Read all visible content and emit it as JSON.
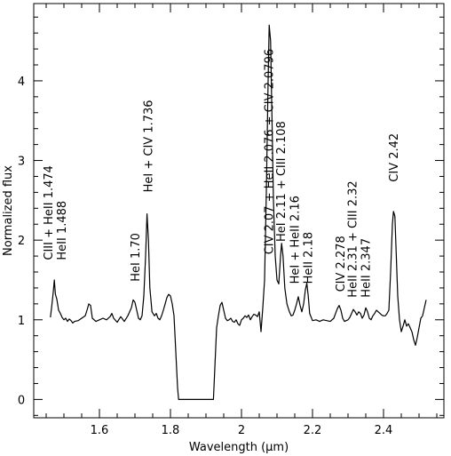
{
  "chart_data": {
    "type": "line",
    "xlabel": "Wavelength (μm)",
    "ylabel": "Normalized flux",
    "xlim": [
      1.415,
      2.57
    ],
    "ylim": [
      -0.23,
      4.97
    ],
    "x_ticks": [
      1.6,
      1.8,
      2.0,
      2.2,
      2.4
    ],
    "x_tick_labels": [
      "1.6",
      "1.8",
      "2",
      "2.2",
      "2.4"
    ],
    "y_ticks": [
      0,
      1,
      2,
      3,
      4
    ],
    "y_tick_labels": [
      "0",
      "1",
      "2",
      "3",
      "4"
    ],
    "grid": false,
    "line_color": "#000000",
    "series": [
      {
        "points": [
          [
            1.462,
            1.03
          ],
          [
            1.466,
            1.18
          ],
          [
            1.47,
            1.35
          ],
          [
            1.473,
            1.5
          ],
          [
            1.476,
            1.32
          ],
          [
            1.48,
            1.26
          ],
          [
            1.485,
            1.12
          ],
          [
            1.49,
            1.08
          ],
          [
            1.495,
            1.03
          ],
          [
            1.5,
            1.0
          ],
          [
            1.505,
            1.02
          ],
          [
            1.51,
            0.98
          ],
          [
            1.515,
            1.01
          ],
          [
            1.52,
            0.99
          ],
          [
            1.525,
            0.96
          ],
          [
            1.53,
            0.98
          ],
          [
            1.54,
            0.99
          ],
          [
            1.55,
            1.02
          ],
          [
            1.56,
            1.05
          ],
          [
            1.565,
            1.12
          ],
          [
            1.57,
            1.2
          ],
          [
            1.575,
            1.18
          ],
          [
            1.58,
            1.02
          ],
          [
            1.59,
            0.98
          ],
          [
            1.6,
            1.0
          ],
          [
            1.61,
            1.02
          ],
          [
            1.62,
            1.0
          ],
          [
            1.63,
            1.04
          ],
          [
            1.635,
            1.08
          ],
          [
            1.64,
            1.02
          ],
          [
            1.65,
            0.97
          ],
          [
            1.66,
            1.04
          ],
          [
            1.67,
            0.98
          ],
          [
            1.68,
            1.05
          ],
          [
            1.69,
            1.15
          ],
          [
            1.695,
            1.25
          ],
          [
            1.7,
            1.22
          ],
          [
            1.705,
            1.12
          ],
          [
            1.71,
            1.02
          ],
          [
            1.715,
            1.0
          ],
          [
            1.72,
            1.05
          ],
          [
            1.725,
            1.3
          ],
          [
            1.73,
            1.8
          ],
          [
            1.734,
            2.33
          ],
          [
            1.738,
            2.0
          ],
          [
            1.742,
            1.4
          ],
          [
            1.748,
            1.1
          ],
          [
            1.755,
            1.05
          ],
          [
            1.76,
            1.08
          ],
          [
            1.765,
            1.02
          ],
          [
            1.77,
            1.0
          ],
          [
            1.775,
            1.05
          ],
          [
            1.78,
            1.12
          ],
          [
            1.785,
            1.2
          ],
          [
            1.79,
            1.28
          ],
          [
            1.795,
            1.32
          ],
          [
            1.8,
            1.3
          ],
          [
            1.805,
            1.2
          ],
          [
            1.81,
            1.05
          ],
          [
            1.815,
            0.6
          ],
          [
            1.82,
            0.15
          ],
          [
            1.823,
            0.0
          ],
          [
            1.83,
            0.0
          ],
          [
            1.9,
            0.0
          ],
          [
            1.921,
            0.0
          ],
          [
            1.925,
            0.4
          ],
          [
            1.93,
            0.9
          ],
          [
            1.935,
            1.05
          ],
          [
            1.94,
            1.18
          ],
          [
            1.945,
            1.22
          ],
          [
            1.95,
            1.12
          ],
          [
            1.955,
            1.02
          ],
          [
            1.96,
            0.99
          ],
          [
            1.965,
            1.0
          ],
          [
            1.97,
            1.02
          ],
          [
            1.975,
            0.98
          ],
          [
            1.98,
            0.97
          ],
          [
            1.985,
            1.0
          ],
          [
            1.99,
            0.95
          ],
          [
            1.995,
            0.93
          ],
          [
            2.0,
            1.0
          ],
          [
            2.005,
            1.02
          ],
          [
            2.01,
            1.05
          ],
          [
            2.015,
            1.03
          ],
          [
            2.02,
            1.06
          ],
          [
            2.025,
            1.0
          ],
          [
            2.03,
            1.04
          ],
          [
            2.035,
            1.07
          ],
          [
            2.04,
            1.06
          ],
          [
            2.045,
            1.04
          ],
          [
            2.05,
            1.1
          ],
          [
            2.055,
            0.85
          ],
          [
            2.06,
            1.15
          ],
          [
            2.065,
            1.5
          ],
          [
            2.07,
            2.6
          ],
          [
            2.075,
            4.0
          ],
          [
            2.078,
            4.7
          ],
          [
            2.082,
            4.5
          ],
          [
            2.086,
            3.5
          ],
          [
            2.09,
            2.5
          ],
          [
            2.095,
            1.8
          ],
          [
            2.1,
            1.5
          ],
          [
            2.105,
            1.45
          ],
          [
            2.11,
            1.8
          ],
          [
            2.113,
            1.96
          ],
          [
            2.117,
            1.8
          ],
          [
            2.122,
            1.4
          ],
          [
            2.128,
            1.2
          ],
          [
            2.135,
            1.1
          ],
          [
            2.14,
            1.05
          ],
          [
            2.145,
            1.06
          ],
          [
            2.15,
            1.12
          ],
          [
            2.155,
            1.2
          ],
          [
            2.16,
            1.29
          ],
          [
            2.165,
            1.18
          ],
          [
            2.17,
            1.1
          ],
          [
            2.175,
            1.2
          ],
          [
            2.18,
            1.38
          ],
          [
            2.184,
            1.46
          ],
          [
            2.188,
            1.3
          ],
          [
            2.192,
            1.08
          ],
          [
            2.2,
            0.99
          ],
          [
            2.21,
            1.0
          ],
          [
            2.22,
            0.98
          ],
          [
            2.23,
            1.0
          ],
          [
            2.24,
            0.99
          ],
          [
            2.25,
            0.98
          ],
          [
            2.26,
            1.02
          ],
          [
            2.265,
            1.08
          ],
          [
            2.27,
            1.14
          ],
          [
            2.275,
            1.18
          ],
          [
            2.28,
            1.12
          ],
          [
            2.285,
            1.02
          ],
          [
            2.29,
            0.98
          ],
          [
            2.3,
            1.0
          ],
          [
            2.305,
            1.03
          ],
          [
            2.31,
            1.08
          ],
          [
            2.315,
            1.13
          ],
          [
            2.32,
            1.1
          ],
          [
            2.325,
            1.06
          ],
          [
            2.33,
            1.1
          ],
          [
            2.335,
            1.08
          ],
          [
            2.34,
            1.02
          ],
          [
            2.345,
            1.06
          ],
          [
            2.35,
            1.15
          ],
          [
            2.355,
            1.1
          ],
          [
            2.36,
            1.02
          ],
          [
            2.365,
            1.0
          ],
          [
            2.37,
            1.05
          ],
          [
            2.375,
            1.08
          ],
          [
            2.38,
            1.12
          ],
          [
            2.385,
            1.1
          ],
          [
            2.39,
            1.08
          ],
          [
            2.395,
            1.06
          ],
          [
            2.4,
            1.05
          ],
          [
            2.405,
            1.05
          ],
          [
            2.41,
            1.08
          ],
          [
            2.415,
            1.12
          ],
          [
            2.42,
            1.6
          ],
          [
            2.425,
            2.2
          ],
          [
            2.428,
            2.36
          ],
          [
            2.432,
            2.3
          ],
          [
            2.436,
            1.8
          ],
          [
            2.44,
            1.3
          ],
          [
            2.445,
            1.0
          ],
          [
            2.45,
            0.85
          ],
          [
            2.455,
            0.92
          ],
          [
            2.46,
            1.0
          ],
          [
            2.465,
            0.92
          ],
          [
            2.47,
            0.95
          ],
          [
            2.475,
            0.9
          ],
          [
            2.48,
            0.85
          ],
          [
            2.485,
            0.75
          ],
          [
            2.49,
            0.68
          ],
          [
            2.495,
            0.78
          ],
          [
            2.5,
            0.9
          ],
          [
            2.505,
            1.02
          ],
          [
            2.51,
            1.05
          ],
          [
            2.515,
            1.15
          ],
          [
            2.52,
            1.25
          ]
        ]
      }
    ],
    "annotations": [
      {
        "lines": [
          "CIII + HeII 1.474",
          "HeII 1.488"
        ],
        "x": 1.474,
        "y": 1.75
      },
      {
        "lines": [
          "HeI 1.70"
        ],
        "x": 1.7,
        "y": 1.48
      },
      {
        "lines": [
          "HeI + CIV 1.736"
        ],
        "x": 1.736,
        "y": 2.6
      },
      {
        "lines": [
          "CIV 2.07 + HeII 2.076 + CIV 2.0796"
        ],
        "x": 2.076,
        "y": 1.82
      },
      {
        "lines": [
          "HeI 2.11 + CIII 2.108"
        ],
        "x": 2.11,
        "y": 1.98
      },
      {
        "lines": [
          "HeI + HeII 2.16",
          "HeII 2.18"
        ],
        "x": 2.168,
        "y": 1.45
      },
      {
        "lines": [
          "CIV 2.278"
        ],
        "x": 2.278,
        "y": 1.35
      },
      {
        "lines": [
          "HeII 2.31 + CIII 2.32",
          "HeII 2.347"
        ],
        "x": 2.33,
        "y": 1.28
      },
      {
        "lines": [
          "CIV 2.42"
        ],
        "x": 2.428,
        "y": 2.73
      }
    ]
  }
}
